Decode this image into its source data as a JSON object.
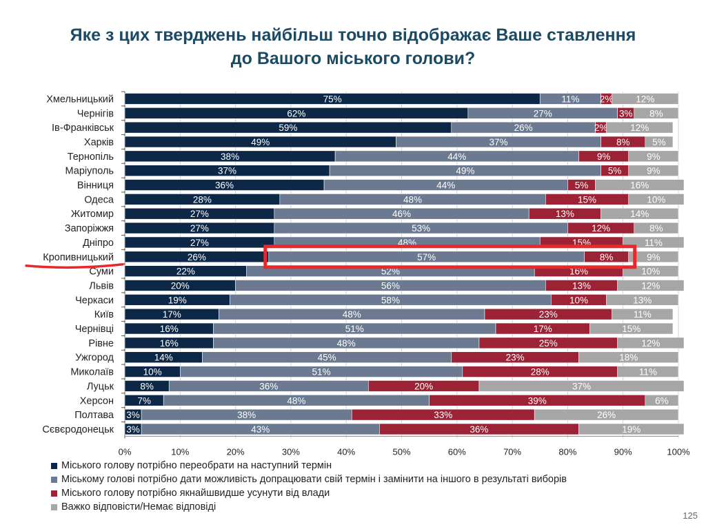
{
  "title_line1": "Яке з цих тверджень найбільш точно відображає Ваше ставлення",
  "title_line2": "до Вашого міського голови?",
  "page_number": "125",
  "highlighted_city": "Кропивницький",
  "colors": {
    "series": [
      "#0d2847",
      "#6b7a90",
      "#9b2335",
      "#a6a6a6"
    ],
    "highlight_box": "#e8282b",
    "highlight_underline": "#e8282b",
    "grid": "#d0d0d0"
  },
  "chart_data": {
    "type": "bar",
    "orientation": "horizontal",
    "stacked": true,
    "xlim": [
      0,
      100
    ],
    "xticks": [
      "0%",
      "10%",
      "20%",
      "30%",
      "40%",
      "50%",
      "60%",
      "70%",
      "80%",
      "90%",
      "100%"
    ],
    "grid": true,
    "legend_position": "bottom-left",
    "categories": [
      "Хмельницький",
      "Чернігів",
      "Ів-Франківськ",
      "Харків",
      "Тернопіль",
      "Маріуполь",
      "Вінниця",
      "Одеса",
      "Житомир",
      "Запоріжжя",
      "Дніпро",
      "Кропивницький",
      "Суми",
      "Львів",
      "Черкаси",
      "Київ",
      "Чернівці",
      "Рівне",
      "Ужгород",
      "Миколаїв",
      "Луцьк",
      "Херсон",
      "Полтава",
      "Сєвєродонецьк"
    ],
    "series": [
      {
        "name": "Міського голову  потрібно переобрати на наступний термін",
        "values": [
          75,
          62,
          59,
          49,
          38,
          37,
          36,
          28,
          27,
          27,
          27,
          26,
          22,
          20,
          19,
          17,
          16,
          16,
          14,
          10,
          8,
          7,
          3,
          3
        ]
      },
      {
        "name": "Міському голові потрібно дати можливість допрацювати свій термін і замінити на іншого в результаті виборів",
        "values": [
          11,
          27,
          26,
          37,
          44,
          49,
          44,
          48,
          46,
          53,
          48,
          57,
          52,
          56,
          58,
          48,
          51,
          48,
          45,
          51,
          36,
          48,
          38,
          43
        ]
      },
      {
        "name": "Міського голову потрібно якнайшвидше усунути від влади",
        "values": [
          2,
          3,
          2,
          8,
          9,
          5,
          5,
          15,
          13,
          12,
          15,
          8,
          16,
          13,
          10,
          23,
          17,
          25,
          23,
          28,
          20,
          39,
          33,
          36
        ]
      },
      {
        "name": "Важко відповісти/Немає відповіді",
        "values": [
          12,
          8,
          12,
          5,
          9,
          9,
          16,
          10,
          14,
          8,
          11,
          9,
          10,
          12,
          13,
          11,
          15,
          12,
          18,
          11,
          37,
          6,
          26,
          19
        ]
      }
    ]
  }
}
